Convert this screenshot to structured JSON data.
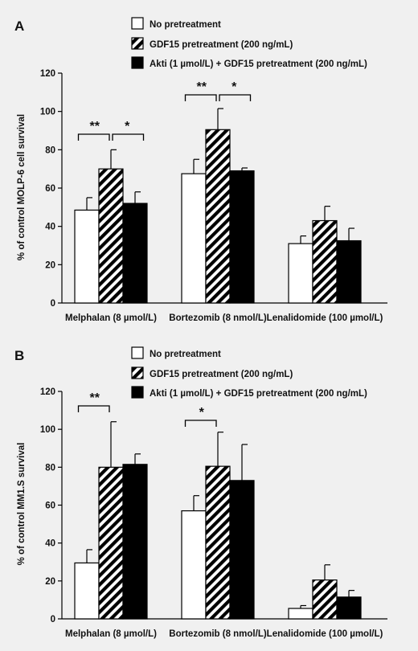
{
  "legend": [
    {
      "label": "No pretreatment",
      "fill": "white"
    },
    {
      "label": "GDF15 pretreatment (200 ng/mL)",
      "fill": "hatch"
    },
    {
      "label": "Akti (1 µmol/L) + GDF15 pretreatment  (200 ng/mL)",
      "fill": "black"
    }
  ],
  "colors": {
    "background": "#f0f0f0",
    "bar_black": "#000000",
    "bar_white": "#ffffff",
    "line": "#000000"
  },
  "chart_data": [
    {
      "panel": "A",
      "type": "bar",
      "ylabel": "% of control MOLP-6 cell survival",
      "ylim": [
        0,
        120
      ],
      "yticks": [
        0,
        20,
        40,
        60,
        80,
        100,
        120
      ],
      "categories": [
        "Melphalan (8 µmol/L)",
        "Bortezomib (8 nmol/L)",
        "Lenalidomide (100 µmol/L)"
      ],
      "series": [
        {
          "name": "No pretreatment",
          "values": [
            48.5,
            67.5,
            31
          ],
          "errors": [
            6.5,
            7.5,
            4
          ]
        },
        {
          "name": "GDF15 pretreatment (200 ng/mL)",
          "values": [
            70,
            90.5,
            43
          ],
          "errors": [
            10,
            11,
            7.5
          ]
        },
        {
          "name": "Akti (1 µmol/L) + GDF15 pretreatment  (200 ng/mL)",
          "values": [
            52,
            69,
            32.5
          ],
          "errors": [
            6,
            1.5,
            6.5
          ]
        }
      ],
      "significance": [
        {
          "category": 0,
          "from": 0,
          "to": 1,
          "label": "**"
        },
        {
          "category": 0,
          "from": 1,
          "to": 2,
          "label": "*"
        },
        {
          "category": 1,
          "from": 0,
          "to": 1,
          "label": "**"
        },
        {
          "category": 1,
          "from": 1,
          "to": 2,
          "label": "*"
        }
      ]
    },
    {
      "panel": "B",
      "type": "bar",
      "ylabel": "% of control MM1.S survival",
      "ylim": [
        0,
        120
      ],
      "yticks": [
        0,
        20,
        40,
        60,
        80,
        100,
        120
      ],
      "categories": [
        "Melphalan (8 µmol/L)",
        "Bortezomib (8 nmol/L)",
        "Lenalidomide (100 µmol/L)"
      ],
      "series": [
        {
          "name": "No pretreatment",
          "values": [
            29.5,
            57,
            5.5
          ],
          "errors": [
            7,
            8,
            1.5
          ]
        },
        {
          "name": "GDF15 pretreatment (200 ng/mL)",
          "values": [
            80,
            80.5,
            20.5
          ],
          "errors": [
            24,
            18,
            8
          ]
        },
        {
          "name": "Akti (1 µmol/L) + GDF15 pretreatment  (200 ng/mL)",
          "values": [
            81.5,
            73,
            11.5
          ],
          "errors": [
            5.5,
            19,
            3.5
          ]
        }
      ],
      "significance": [
        {
          "category": 0,
          "from": 0,
          "to": 1,
          "label": "**"
        },
        {
          "category": 1,
          "from": 0,
          "to": 1,
          "label": "*"
        }
      ]
    }
  ]
}
